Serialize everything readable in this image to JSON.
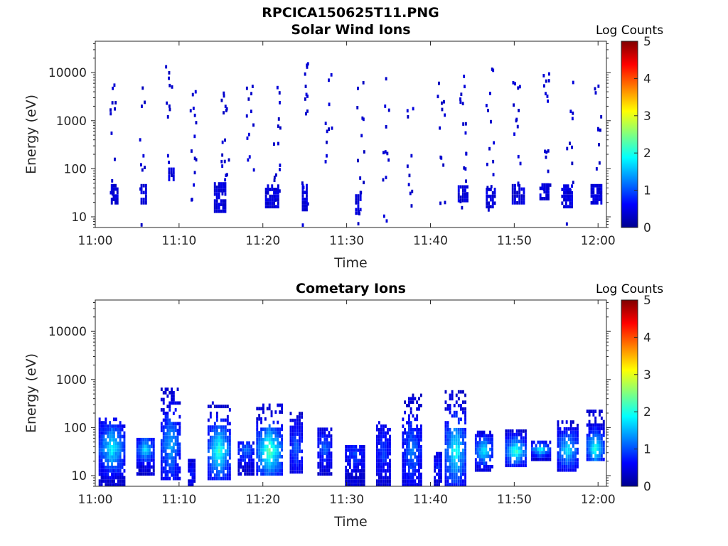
{
  "figure": {
    "title": "RPCICA150625T11.PNG"
  },
  "colormap": [
    "#00008F",
    "#0000FF",
    "#0080FF",
    "#00FFFF",
    "#80FF80",
    "#FFFF00",
    "#FF8000",
    "#FF0000",
    "#800000"
  ],
  "chart_data": [
    {
      "type": "heatmap",
      "title": "Solar Wind Ions",
      "xlabel": "Time",
      "ylabel": "Energy (eV)",
      "x_ticks": [
        "11:00",
        "11:10",
        "11:20",
        "11:30",
        "11:40",
        "11:50",
        "12:00"
      ],
      "x_range_minutes": [
        0,
        61
      ],
      "y_scale": "log",
      "y_ticks": [
        "10",
        "100",
        "1000",
        "10000"
      ],
      "y_range": [
        6,
        45000
      ],
      "colorbar": {
        "label": "Log Counts",
        "range": [
          0,
          5
        ],
        "ticks": [
          "0",
          "1",
          "2",
          "3",
          "4",
          "5"
        ]
      },
      "blocks": [
        {
          "t": 2.3,
          "w": 0.9,
          "e_lo": 18,
          "e_hi": 45,
          "v": 0.3
        },
        {
          "t": 5.8,
          "w": 0.8,
          "e_lo": 18,
          "e_hi": 45,
          "v": 0.3
        },
        {
          "t": 9.1,
          "w": 0.8,
          "e_lo": 55,
          "e_hi": 100,
          "v": 0.3
        },
        {
          "t": 14.9,
          "w": 1.5,
          "e_lo": 12,
          "e_hi": 45,
          "v": 0.3
        },
        {
          "t": 21.1,
          "w": 1.7,
          "e_lo": 15,
          "e_hi": 45,
          "v": 0.3
        },
        {
          "t": 25.0,
          "w": 0.7,
          "e_lo": 13,
          "e_hi": 45,
          "v": 0.3
        },
        {
          "t": 31.4,
          "w": 0.8,
          "e_lo": 11,
          "e_hi": 32,
          "v": 0.3
        },
        {
          "t": 43.9,
          "w": 1.3,
          "e_lo": 20,
          "e_hi": 40,
          "v": 0.3
        },
        {
          "t": 47.2,
          "w": 1.2,
          "e_lo": 15,
          "e_hi": 40,
          "v": 0.3
        },
        {
          "t": 50.5,
          "w": 1.6,
          "e_lo": 18,
          "e_hi": 45,
          "v": 0.3
        },
        {
          "t": 53.6,
          "w": 1.2,
          "e_lo": 22,
          "e_hi": 45,
          "v": 0.3
        },
        {
          "t": 56.3,
          "w": 1.4,
          "e_lo": 15,
          "e_hi": 45,
          "v": 0.3
        },
        {
          "t": 59.8,
          "w": 1.4,
          "e_lo": 18,
          "e_hi": 45,
          "v": 0.3
        }
      ],
      "scatter_columns": [
        {
          "t": 2.0,
          "e_lo": 6,
          "e_hi": 5200,
          "n": 14
        },
        {
          "t": 5.6,
          "e_lo": 6,
          "e_hi": 6500,
          "n": 10
        },
        {
          "t": 8.6,
          "e_lo": 40,
          "e_hi": 16000,
          "n": 12
        },
        {
          "t": 11.6,
          "e_lo": 20,
          "e_hi": 11000,
          "n": 14
        },
        {
          "t": 15.4,
          "e_lo": 12,
          "e_hi": 12000,
          "n": 18
        },
        {
          "t": 18.4,
          "e_lo": 16,
          "e_hi": 5000,
          "n": 12
        },
        {
          "t": 21.6,
          "e_lo": 16,
          "e_hi": 6000,
          "n": 16
        },
        {
          "t": 25.0,
          "e_lo": 6,
          "e_hi": 15000,
          "n": 14
        },
        {
          "t": 27.8,
          "e_lo": 100,
          "e_hi": 9000,
          "n": 10
        },
        {
          "t": 31.6,
          "e_lo": 6,
          "e_hi": 9000,
          "n": 14
        },
        {
          "t": 34.6,
          "e_lo": 6,
          "e_hi": 9000,
          "n": 12
        },
        {
          "t": 37.4,
          "e_lo": 15,
          "e_hi": 2500,
          "n": 10
        },
        {
          "t": 41.2,
          "e_lo": 15,
          "e_hi": 8000,
          "n": 12
        },
        {
          "t": 43.8,
          "e_lo": 12,
          "e_hi": 9000,
          "n": 16
        },
        {
          "t": 47.0,
          "e_lo": 12,
          "e_hi": 11000,
          "n": 14
        },
        {
          "t": 50.2,
          "e_lo": 20,
          "e_hi": 9000,
          "n": 14
        },
        {
          "t": 53.8,
          "e_lo": 20,
          "e_hi": 13000,
          "n": 16
        },
        {
          "t": 56.6,
          "e_lo": 6,
          "e_hi": 11000,
          "n": 14
        },
        {
          "t": 59.9,
          "e_lo": 18,
          "e_hi": 7000,
          "n": 12
        }
      ]
    },
    {
      "type": "heatmap",
      "title": "Cometary Ions",
      "xlabel": "Time",
      "ylabel": "Energy (eV)",
      "x_ticks": [
        "11:00",
        "11:10",
        "11:20",
        "11:30",
        "11:40",
        "11:50",
        "12:00"
      ],
      "x_range_minutes": [
        0,
        61
      ],
      "y_scale": "log",
      "y_ticks": [
        "10",
        "100",
        "1000",
        "10000"
      ],
      "y_range": [
        6,
        45000
      ],
      "colorbar": {
        "label": "Log Counts",
        "range": [
          0,
          5
        ],
        "ticks": [
          "0",
          "1",
          "2",
          "3",
          "4",
          "5"
        ]
      },
      "bursts": [
        {
          "t": 2.0,
          "w": 3.2,
          "e_lo": 6,
          "e_hi": 150,
          "peak_e": 35,
          "peak": 1.6
        },
        {
          "t": 6.0,
          "w": 2.2,
          "e_lo": 10,
          "e_hi": 60,
          "peak_e": 32,
          "peak": 1.4
        },
        {
          "t": 9.0,
          "w": 2.4,
          "e_lo": 8,
          "e_hi": 600,
          "peak_e": 40,
          "peak": 1.2
        },
        {
          "t": 11.5,
          "w": 0.9,
          "e_lo": 6,
          "e_hi": 20,
          "peak_e": 10,
          "peak": 0.4
        },
        {
          "t": 14.8,
          "w": 2.8,
          "e_lo": 8,
          "e_hi": 330,
          "peak_e": 30,
          "peak": 1.8
        },
        {
          "t": 18.0,
          "w": 2.0,
          "e_lo": 10,
          "e_hi": 50,
          "peak_e": 30,
          "peak": 0.9
        },
        {
          "t": 20.8,
          "w": 3.2,
          "e_lo": 10,
          "e_hi": 300,
          "peak_e": 30,
          "peak": 2.1
        },
        {
          "t": 24.0,
          "w": 1.6,
          "e_lo": 11,
          "e_hi": 210,
          "peak_e": 35,
          "peak": 0.8
        },
        {
          "t": 27.4,
          "w": 1.8,
          "e_lo": 10,
          "e_hi": 90,
          "peak_e": 35,
          "peak": 0.8
        },
        {
          "t": 31.0,
          "w": 2.4,
          "e_lo": 6,
          "e_hi": 40,
          "peak_e": 25,
          "peak": 0.6
        },
        {
          "t": 34.4,
          "w": 1.8,
          "e_lo": 6,
          "e_hi": 130,
          "peak_e": 30,
          "peak": 0.6
        },
        {
          "t": 37.8,
          "w": 2.4,
          "e_lo": 6,
          "e_hi": 500,
          "peak_e": 30,
          "peak": 0.9
        },
        {
          "t": 40.9,
          "w": 1.0,
          "e_lo": 6,
          "e_hi": 30,
          "peak_e": 15,
          "peak": 0.5
        },
        {
          "t": 43.0,
          "w": 2.6,
          "e_lo": 6,
          "e_hi": 550,
          "peak_e": 30,
          "peak": 1.7
        },
        {
          "t": 46.4,
          "w": 2.2,
          "e_lo": 12,
          "e_hi": 80,
          "peak_e": 30,
          "peak": 1.6
        },
        {
          "t": 50.2,
          "w": 2.6,
          "e_lo": 15,
          "e_hi": 90,
          "peak_e": 30,
          "peak": 1.9
        },
        {
          "t": 53.2,
          "w": 2.4,
          "e_lo": 20,
          "e_hi": 50,
          "peak_e": 32,
          "peak": 1.6
        },
        {
          "t": 56.4,
          "w": 2.6,
          "e_lo": 12,
          "e_hi": 130,
          "peak_e": 32,
          "peak": 1.5
        },
        {
          "t": 59.7,
          "w": 2.2,
          "e_lo": 20,
          "e_hi": 210,
          "peak_e": 35,
          "peak": 1.8
        }
      ]
    }
  ]
}
